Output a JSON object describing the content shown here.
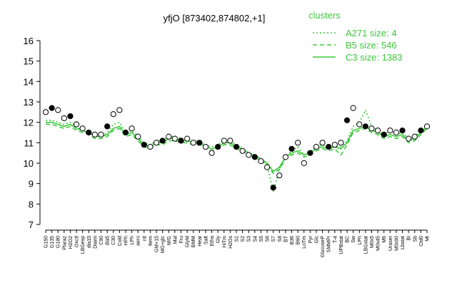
{
  "chart_data": {
    "type": "line",
    "title": "yfjO [873402,874802,+1]",
    "legend_title": "clusters",
    "legend": "top-right",
    "ylim": [
      7,
      16
    ],
    "yticks": [
      7,
      8,
      9,
      10,
      11,
      12,
      13,
      14,
      15,
      16
    ],
    "categories": [
      "G150",
      "G135",
      "G180",
      "Plaraz",
      "H2O2",
      "Oxctl",
      "LBGexp",
      "dia15",
      "Diami",
      "C90",
      "dia5",
      "C30",
      "Cold",
      "HPh",
      "LPh",
      "aero",
      "nit",
      "ferm",
      "GM+15",
      "MG+glc",
      "M/G",
      "Mal",
      "Fru",
      "GlyM",
      "BMM",
      "Heat",
      "Salt",
      "Etha",
      "Gly",
      "HiTm",
      "H2Os",
      "S1",
      "S2",
      "S3",
      "S4",
      "S5",
      "S6",
      "S7",
      "S8",
      "BT",
      "B36",
      "B60",
      "LoTm",
      "Pyr",
      "Glc",
      "GlucoseP",
      "SMMPr",
      "T-4",
      "UPBstat",
      "BC",
      "Sw",
      "LPh",
      "LBGstat",
      "M0x5",
      "M0x45",
      "M6",
      "Uraser",
      "M0x90",
      "Lbstat",
      "BI",
      "Sb",
      "Ctd0",
      "Mt"
    ],
    "series": [
      {
        "name": "A271 size: 4",
        "color": "#3cc83c",
        "dash": "dotted",
        "values": [
          12.1,
          12.1,
          12.0,
          11.9,
          12.0,
          11.8,
          11.6,
          11.5,
          11.4,
          11.3,
          11.5,
          11.9,
          12.0,
          11.5,
          11.6,
          11.3,
          11.0,
          10.9,
          11.1,
          11.1,
          11.3,
          11.3,
          11.2,
          11.2,
          11.1,
          11.1,
          10.9,
          10.8,
          10.9,
          11.2,
          11.1,
          10.9,
          10.7,
          10.5,
          10.4,
          10.2,
          9.9,
          8.6,
          9.7,
          10.3,
          10.6,
          10.8,
          10.4,
          10.6,
          10.8,
          10.9,
          10.8,
          10.9,
          10.8,
          11.1,
          11.8,
          12.0,
          12.6,
          11.8,
          11.6,
          11.4,
          11.6,
          11.4,
          11.5,
          11.2,
          11.3,
          11.6,
          11.9
        ]
      },
      {
        "name": "B5 size: 546",
        "color": "#3cc83c",
        "dash": "dashed",
        "values": [
          11.9,
          11.9,
          11.8,
          11.7,
          11.8,
          11.6,
          11.5,
          11.4,
          11.2,
          11.2,
          11.3,
          11.6,
          11.7,
          11.3,
          11.4,
          11.1,
          10.8,
          10.7,
          10.9,
          10.9,
          11.1,
          11.1,
          11.0,
          11.0,
          10.9,
          10.9,
          10.7,
          10.6,
          10.7,
          10.9,
          10.9,
          10.7,
          10.6,
          10.4,
          10.3,
          10.1,
          9.9,
          9.5,
          9.7,
          10.2,
          10.4,
          10.5,
          10.3,
          10.4,
          10.6,
          10.7,
          10.6,
          10.7,
          10.4,
          10.9,
          11.5,
          11.6,
          11.7,
          11.5,
          11.4,
          11.2,
          11.3,
          11.2,
          11.3,
          11.0,
          11.1,
          11.4,
          11.7
        ]
      },
      {
        "name": "C3 size: 1383",
        "color": "#3cc83c",
        "dash": "solid",
        "values": [
          12.0,
          12.0,
          11.9,
          11.8,
          11.9,
          11.7,
          11.6,
          11.5,
          11.3,
          11.3,
          11.4,
          11.7,
          11.8,
          11.4,
          11.5,
          11.2,
          10.9,
          10.8,
          11.0,
          11.0,
          11.2,
          11.2,
          11.1,
          11.1,
          11.0,
          11.0,
          10.8,
          10.7,
          10.8,
          11.0,
          11.0,
          10.8,
          10.7,
          10.5,
          10.4,
          10.2,
          10.0,
          9.6,
          9.8,
          10.3,
          10.5,
          10.6,
          10.4,
          10.5,
          10.7,
          10.8,
          10.7,
          10.8,
          10.7,
          11.0,
          11.6,
          11.7,
          11.8,
          11.6,
          11.5,
          11.3,
          11.4,
          11.3,
          11.4,
          11.1,
          11.2,
          11.5,
          11.8
        ]
      }
    ],
    "points": {
      "values": [
        12.5,
        12.7,
        12.6,
        12.2,
        12.3,
        11.9,
        11.7,
        11.5,
        11.4,
        11.4,
        11.8,
        12.4,
        12.6,
        11.5,
        11.7,
        11.3,
        10.9,
        10.8,
        11.0,
        11.1,
        11.3,
        11.2,
        11.1,
        11.2,
        11.0,
        11.0,
        10.8,
        10.5,
        10.8,
        11.1,
        11.1,
        10.8,
        10.6,
        10.4,
        10.3,
        10.1,
        9.8,
        8.8,
        9.4,
        10.3,
        10.7,
        11.0,
        10.0,
        10.5,
        10.8,
        11.0,
        10.8,
        10.9,
        11.0,
        12.1,
        12.7,
        11.9,
        11.8,
        11.7,
        11.6,
        11.4,
        11.6,
        11.5,
        11.6,
        11.2,
        11.3,
        11.6,
        11.8
      ]
    }
  }
}
